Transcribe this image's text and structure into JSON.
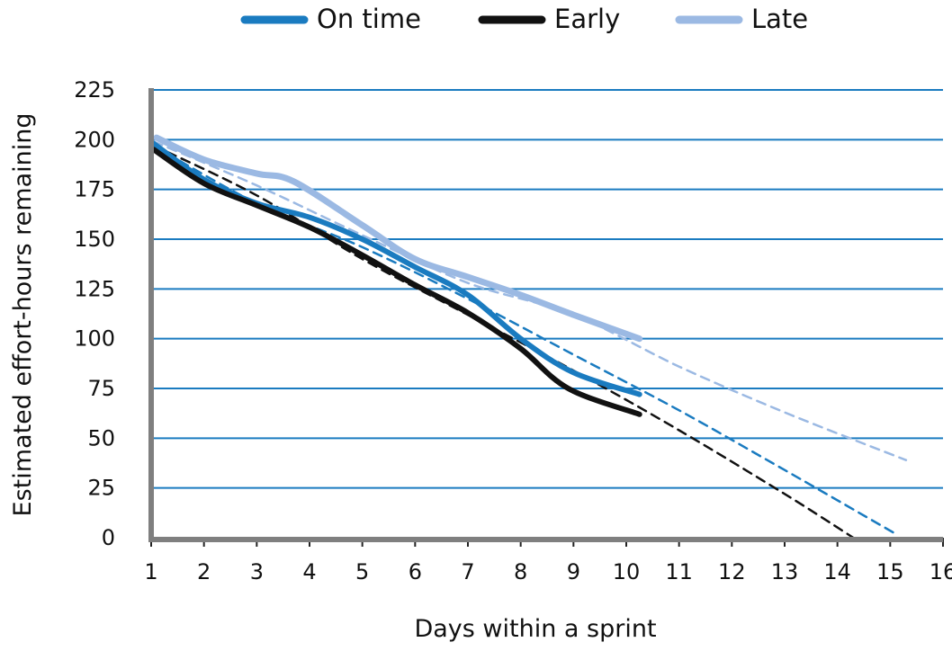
{
  "chart_data": {
    "type": "line",
    "title": "",
    "xlabel": "Days within a sprint",
    "ylabel": "Estimated effort-hours remaining",
    "xlim": [
      1,
      16
    ],
    "ylim": [
      0,
      225
    ],
    "x_ticks": [
      1,
      2,
      3,
      4,
      5,
      6,
      7,
      8,
      9,
      10,
      11,
      12,
      13,
      14,
      15,
      16
    ],
    "y_ticks": [
      0,
      25,
      50,
      75,
      100,
      125,
      150,
      175,
      200,
      225
    ],
    "grid": "horizontal",
    "legend_position": "top",
    "series": [
      {
        "name": "On time",
        "color": "#1a7bc0",
        "actual": [
          [
            1.05,
            198
          ],
          [
            2,
            180
          ],
          [
            3,
            168
          ],
          [
            4,
            161
          ],
          [
            5,
            150
          ],
          [
            6,
            136
          ],
          [
            7,
            122
          ],
          [
            8,
            100
          ],
          [
            9,
            83
          ],
          [
            10.25,
            72
          ]
        ],
        "trend": [
          [
            1.05,
            197
          ],
          [
            3,
            168
          ],
          [
            5,
            146
          ],
          [
            7,
            120
          ],
          [
            9,
            92
          ],
          [
            11,
            64
          ],
          [
            13,
            34
          ],
          [
            15.1,
            2
          ]
        ]
      },
      {
        "name": "Early",
        "color": "#111111",
        "actual": [
          [
            1.05,
            195
          ],
          [
            2,
            178
          ],
          [
            3,
            167
          ],
          [
            4,
            156
          ],
          [
            5,
            142
          ],
          [
            6,
            127
          ],
          [
            7,
            113
          ],
          [
            8,
            95
          ],
          [
            8.9,
            75
          ],
          [
            10.25,
            62
          ]
        ],
        "trend": [
          [
            1.05,
            197
          ],
          [
            3,
            172
          ],
          [
            5,
            140
          ],
          [
            7,
            112
          ],
          [
            9,
            84
          ],
          [
            11,
            54
          ],
          [
            13,
            22
          ],
          [
            14.3,
            0
          ]
        ]
      },
      {
        "name": "Late",
        "color": "#9bb9e3",
        "actual": [
          [
            1.1,
            201
          ],
          [
            2,
            190
          ],
          [
            3,
            183
          ],
          [
            3.7,
            179
          ],
          [
            5,
            157
          ],
          [
            6,
            140
          ],
          [
            7,
            131
          ],
          [
            8,
            122
          ],
          [
            9,
            112
          ],
          [
            10.25,
            100
          ]
        ],
        "trend": [
          [
            1.05,
            199
          ],
          [
            3,
            177
          ],
          [
            5,
            152
          ],
          [
            7,
            128
          ],
          [
            9,
            112
          ],
          [
            11,
            86
          ],
          [
            13,
            63
          ],
          [
            15.3,
            39
          ]
        ]
      }
    ]
  }
}
